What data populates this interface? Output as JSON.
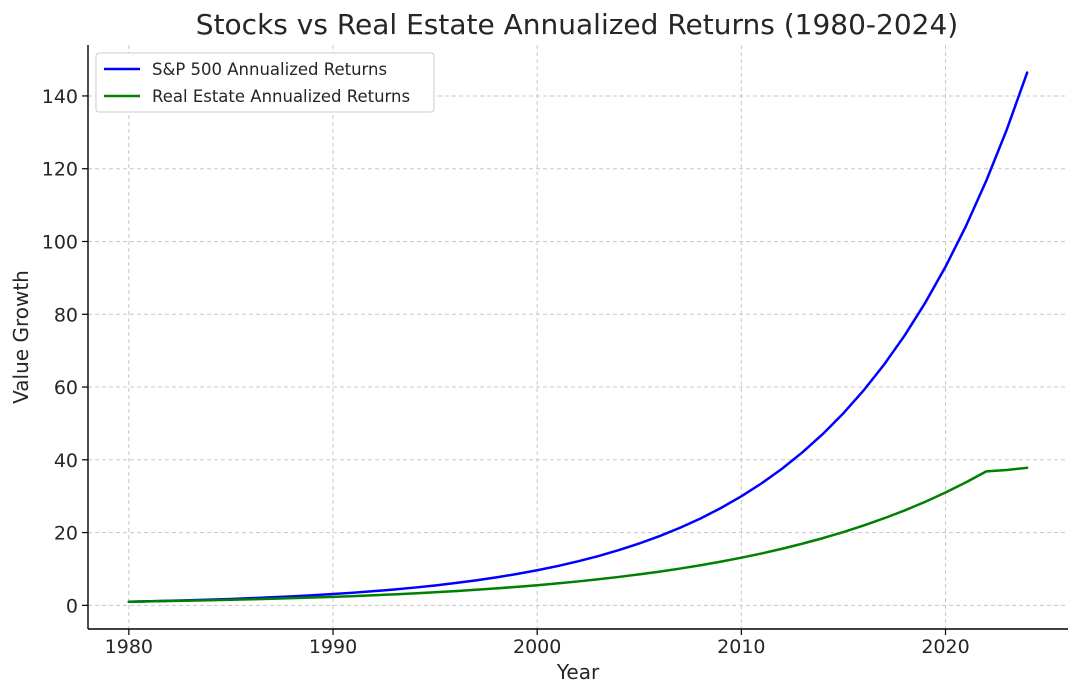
{
  "chart_data": {
    "type": "line",
    "title": "Stocks vs Real Estate Annualized Returns (1980-2024)",
    "xlabel": "Year",
    "ylabel": "Value Growth",
    "xlim": [
      1978,
      2026
    ],
    "ylim": [
      -6.5,
      154
    ],
    "xticks": [
      1980,
      1990,
      2000,
      2010,
      2020
    ],
    "yticks": [
      0,
      20,
      40,
      60,
      80,
      100,
      120,
      140
    ],
    "grid": true,
    "legend_position": "top-left",
    "x": [
      1980,
      1981,
      1982,
      1983,
      1984,
      1985,
      1986,
      1987,
      1988,
      1989,
      1990,
      1991,
      1992,
      1993,
      1994,
      1995,
      1996,
      1997,
      1998,
      1999,
      2000,
      2001,
      2002,
      2003,
      2004,
      2005,
      2006,
      2007,
      2008,
      2009,
      2010,
      2011,
      2012,
      2013,
      2014,
      2015,
      2016,
      2017,
      2018,
      2019,
      2020,
      2021,
      2022,
      2023,
      2024
    ],
    "series": [
      {
        "name": "S&P 500 Annualized Returns",
        "color": "#0000ff",
        "values": [
          1.0,
          1.12,
          1.25,
          1.4,
          1.57,
          1.76,
          1.97,
          2.21,
          2.48,
          2.77,
          3.11,
          3.48,
          3.9,
          4.36,
          4.89,
          5.47,
          6.13,
          6.87,
          7.69,
          8.61,
          9.65,
          10.8,
          12.1,
          13.55,
          15.18,
          17.0,
          19.04,
          21.32,
          23.88,
          26.75,
          29.96,
          33.56,
          37.58,
          42.09,
          47.14,
          52.8,
          59.14,
          66.23,
          74.18,
          83.08,
          93.05,
          104.22,
          116.72,
          130.73,
          146.42
        ]
      },
      {
        "name": "Real Estate Annualized Returns",
        "color": "#008000",
        "values": [
          1.0,
          1.09,
          1.18,
          1.29,
          1.4,
          1.53,
          1.66,
          1.81,
          1.97,
          2.15,
          2.34,
          2.55,
          2.78,
          3.03,
          3.3,
          3.6,
          3.92,
          4.27,
          4.66,
          5.08,
          5.53,
          6.03,
          6.57,
          7.16,
          7.81,
          8.51,
          9.28,
          10.11,
          11.02,
          12.01,
          13.1,
          14.27,
          15.56,
          16.96,
          18.48,
          20.15,
          21.96,
          23.94,
          26.09,
          28.44,
          31.0,
          33.79,
          36.83,
          37.2,
          37.8
        ]
      }
    ]
  }
}
